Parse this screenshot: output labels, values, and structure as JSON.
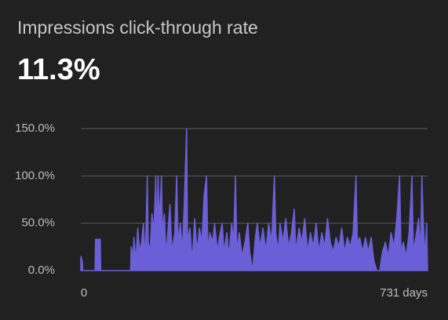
{
  "chart_data": {
    "type": "area",
    "title": "Impressions click-through rate",
    "headline": "11.3%",
    "color": "#6a5fd6",
    "grid": true,
    "x": [
      0,
      3,
      4,
      30,
      31,
      41,
      42,
      105,
      106,
      110,
      112,
      116,
      120,
      124,
      128,
      132,
      136,
      140,
      142,
      146,
      150,
      154,
      158,
      160,
      163,
      166,
      170,
      172,
      176,
      180,
      184,
      188,
      192,
      198,
      202,
      205,
      210,
      214,
      218,
      223,
      225,
      230,
      235,
      240,
      245,
      250,
      255,
      260,
      265,
      268,
      272,
      278,
      282,
      288,
      292,
      298,
      302,
      308,
      312,
      318,
      322,
      326,
      329,
      334,
      340,
      346,
      352,
      356,
      362,
      368,
      372,
      378,
      384,
      390,
      396,
      402,
      408,
      411,
      416,
      420,
      426,
      432,
      438,
      444,
      450,
      453,
      460,
      466,
      472,
      478,
      484,
      490,
      496,
      502,
      508,
      514,
      520,
      526,
      532,
      538,
      544,
      550,
      556,
      562,
      568,
      574,
      580,
      583,
      588,
      594,
      600,
      606,
      612,
      618,
      624,
      630,
      636,
      642,
      648,
      654,
      660,
      666,
      672,
      675,
      680,
      686,
      692,
      698,
      701,
      706,
      712,
      716,
      719,
      722,
      726,
      729,
      731
    ],
    "values": [
      15,
      10,
      0,
      0,
      33,
      33,
      0,
      0,
      25,
      15,
      35,
      10,
      45,
      20,
      30,
      50,
      10,
      100,
      30,
      20,
      60,
      40,
      100,
      30,
      100,
      50,
      100,
      40,
      60,
      15,
      45,
      70,
      20,
      40,
      100,
      30,
      50,
      20,
      70,
      150,
      30,
      45,
      10,
      55,
      20,
      45,
      30,
      80,
      100,
      20,
      40,
      30,
      50,
      20,
      35,
      50,
      20,
      40,
      15,
      50,
      30,
      100,
      20,
      40,
      15,
      30,
      50,
      20,
      0,
      35,
      50,
      25,
      45,
      20,
      50,
      30,
      100,
      40,
      20,
      50,
      30,
      55,
      25,
      40,
      65,
      20,
      45,
      30,
      55,
      20,
      40,
      25,
      50,
      20,
      40,
      25,
      55,
      30,
      20,
      35,
      25,
      45,
      20,
      35,
      25,
      40,
      100,
      30,
      35,
      20,
      35,
      20,
      35,
      10,
      0,
      0,
      20,
      30,
      15,
      40,
      25,
      55,
      100,
      20,
      30,
      15,
      40,
      100,
      20,
      35,
      55,
      20,
      100,
      50,
      15,
      50,
      0
    ],
    "xlim": [
      0,
      731
    ],
    "xticks": [
      0,
      {
        "value": 731,
        "label": "731 days"
      }
    ],
    "ylim": [
      0,
      150
    ],
    "yticks": [
      {
        "value": 0,
        "label": "0.0%"
      },
      {
        "value": 50,
        "label": "50.0%"
      },
      {
        "value": 100,
        "label": "100.0%"
      },
      {
        "value": 150,
        "label": "150.0%"
      }
    ]
  }
}
